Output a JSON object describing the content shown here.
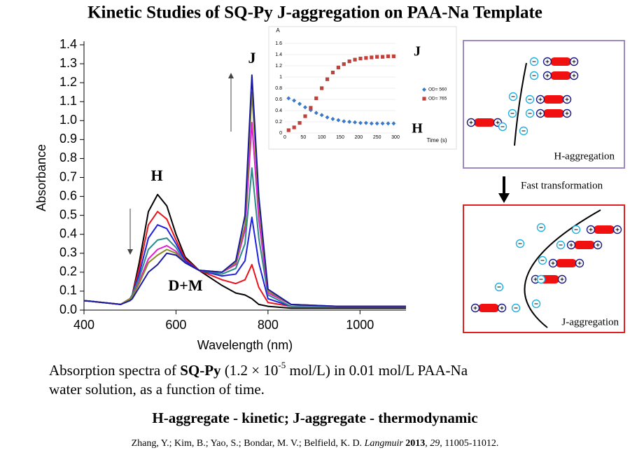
{
  "title": "Kinetic Studies of SQ-Py J-aggregation on PAA-Na Template",
  "chart_data": [
    {
      "type": "line",
      "x_label": "Wavelength (nm)",
      "y_label": "Absorbance",
      "annotations": [
        "H",
        "J",
        "D+M"
      ],
      "xlim": [
        400,
        1100
      ],
      "xticks": [
        400,
        600,
        800,
        1000
      ],
      "ylim": [
        0,
        1.4
      ],
      "yticks": [
        {
          "value": 0,
          "label": "0.0"
        },
        0.1,
        0.2,
        0.3,
        0.4,
        0.5,
        0.6,
        0.7,
        0.8,
        0.9,
        {
          "value": 1,
          "label": "1.0"
        },
        1.1,
        1.2,
        1.3,
        1.4
      ],
      "x": [
        400,
        480,
        500,
        505,
        520,
        540,
        560,
        580,
        600,
        620,
        650,
        700,
        730,
        750,
        765,
        780,
        800,
        850,
        950,
        1100
      ],
      "series": [
        {
          "color": "#000000",
          "values": [
            0.05,
            0.03,
            0.06,
            0.08,
            0.25,
            0.52,
            0.61,
            0.55,
            0.4,
            0.28,
            0.21,
            0.13,
            0.09,
            0.08,
            0.06,
            0.03,
            0.02,
            0.01,
            0.01,
            0.01
          ]
        },
        {
          "color": "#e8141b",
          "values": [
            0.05,
            0.03,
            0.06,
            0.08,
            0.22,
            0.45,
            0.52,
            0.48,
            0.37,
            0.27,
            0.21,
            0.16,
            0.14,
            0.16,
            0.24,
            0.12,
            0.04,
            0.02,
            0.02,
            0.02
          ]
        },
        {
          "color": "#2020e0",
          "values": [
            0.05,
            0.03,
            0.06,
            0.08,
            0.19,
            0.38,
            0.45,
            0.43,
            0.35,
            0.26,
            0.21,
            0.18,
            0.19,
            0.26,
            0.49,
            0.25,
            0.06,
            0.02,
            0.02,
            0.02
          ]
        },
        {
          "color": "#2a8a8a",
          "values": [
            0.05,
            0.03,
            0.06,
            0.08,
            0.17,
            0.32,
            0.37,
            0.38,
            0.33,
            0.25,
            0.21,
            0.19,
            0.22,
            0.35,
            0.75,
            0.38,
            0.08,
            0.02,
            0.02,
            0.02
          ]
        },
        {
          "color": "#e020d0",
          "values": [
            0.05,
            0.03,
            0.06,
            0.07,
            0.15,
            0.27,
            0.32,
            0.34,
            0.31,
            0.25,
            0.21,
            0.2,
            0.24,
            0.42,
            0.99,
            0.48,
            0.09,
            0.03,
            0.02,
            0.02
          ]
        },
        {
          "color": "#8a8a20",
          "values": [
            0.05,
            0.03,
            0.06,
            0.07,
            0.14,
            0.25,
            0.29,
            0.32,
            0.3,
            0.25,
            0.21,
            0.2,
            0.25,
            0.45,
            1.15,
            0.56,
            0.1,
            0.03,
            0.02,
            0.02
          ]
        },
        {
          "color": "#1a1aa0",
          "values": [
            0.05,
            0.03,
            0.05,
            0.06,
            0.12,
            0.2,
            0.24,
            0.3,
            0.29,
            0.25,
            0.21,
            0.2,
            0.26,
            0.5,
            1.24,
            0.6,
            0.11,
            0.03,
            0.02,
            0.02
          ]
        }
      ]
    },
    {
      "type": "scatter",
      "x_label": "Time (s)",
      "y_label": "A",
      "annotations": [
        "J",
        "H"
      ],
      "xlim": [
        0,
        300
      ],
      "xticks": [
        0,
        50,
        100,
        150,
        200,
        250,
        300
      ],
      "ylim": [
        0,
        1.6
      ],
      "yticks": [
        0,
        0.2,
        0.4,
        0.6,
        0.8,
        1,
        1.2,
        1.4,
        1.6
      ],
      "grid": true,
      "x": [
        10,
        25,
        40,
        55,
        70,
        85,
        100,
        115,
        130,
        145,
        160,
        175,
        190,
        205,
        220,
        235,
        250,
        265,
        280,
        295
      ],
      "series": [
        {
          "name": "OD= 560",
          "color": "#3a78c8",
          "marker": "diamond",
          "values": [
            0.62,
            0.58,
            0.52,
            0.46,
            0.41,
            0.36,
            0.32,
            0.28,
            0.25,
            0.23,
            0.21,
            0.2,
            0.19,
            0.18,
            0.18,
            0.17,
            0.17,
            0.17,
            0.17,
            0.17
          ]
        },
        {
          "name": "OD= 765",
          "color": "#c0403a",
          "marker": "square",
          "values": [
            0.05,
            0.1,
            0.18,
            0.3,
            0.45,
            0.62,
            0.8,
            0.96,
            1.08,
            1.17,
            1.23,
            1.28,
            1.31,
            1.33,
            1.34,
            1.35,
            1.36,
            1.36,
            1.37,
            1.37
          ]
        }
      ]
    }
  ],
  "diagram": {
    "h_label": "H-aggregation",
    "arrow_label": "Fast transformation",
    "j_label": "J-aggregation"
  },
  "caption": [
    "Absorption spectra of ",
    "SQ-Py",
    " (1.2 × 10",
    "-5",
    " mol/L) in 0.01 mol/L PAA-Na",
    "water solution, as a function of time."
  ],
  "subtitle": "H-aggregate - kinetic; J-aggregate - thermodynamic",
  "citation": [
    "Zhang, Y.; Kim, B.; Yao, S.; Bondar, M. V.; Belfield, K. D. ",
    "Langmuir",
    " 2013",
    ", ",
    "29",
    ", 11005-11012."
  ]
}
